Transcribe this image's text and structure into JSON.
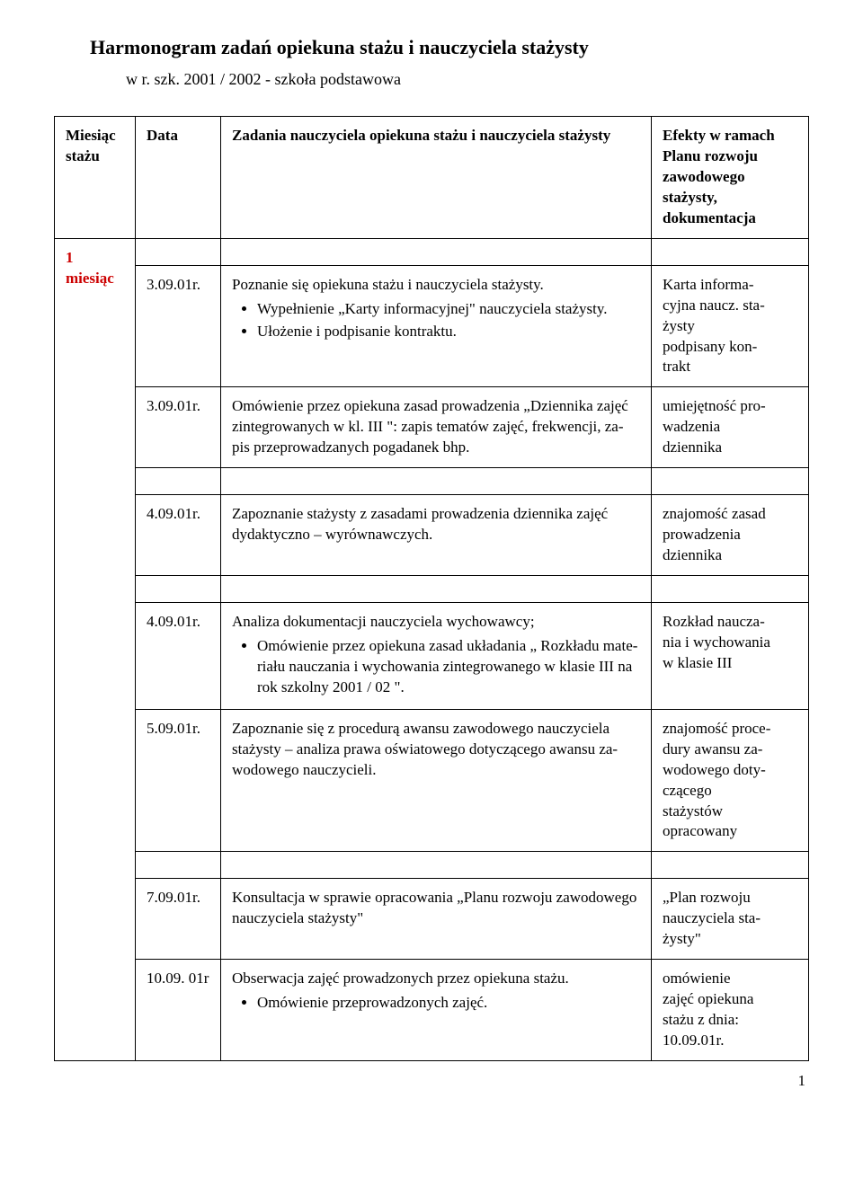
{
  "title": "Harmonogram zadań opiekuna stażu  i nauczyciela stażysty",
  "subtitle": "w   r. szk.   2001 / 2002    -    szkoła podstawowa",
  "headers": {
    "col1": "Miesiąc stażu",
    "col2": "Data",
    "col3": "Zadania nauczyciela opiekuna stażu i nauczyciela stażysty",
    "col4": "Efekty w ramach Planu rozwoju zawodowego stażysty, dokumentacja"
  },
  "month": "1 miesiąc",
  "rows": [
    {
      "date": "3.09.01r.",
      "task_intro": "Poznanie się opiekuna stażu i nauczyciela stażysty.",
      "task_bullets": [
        "Wypełnienie „Karty informacyjnej\" nauczyciela stażysty.",
        "Ułożenie i podpisanie kontraktu."
      ],
      "effect": "Karta informa-\ncyjna naucz. sta-\nżysty\npodpisany kon-\ntrakt"
    },
    {
      "date": "3.09.01r.",
      "task_intro": "Omówienie przez opiekuna zasad prowadzenia „Dziennika zajęć zintegrowanych w kl. III \": zapis tematów zajęć,  frekwencji, za-\npis przeprowadzanych pogadanek bhp.",
      "task_bullets": [],
      "effect": "umiejętność pro-\nwadzenia\ndziennika"
    },
    {
      "date": "4.09.01r.",
      "task_intro": "Zapoznanie stażysty z zasadami prowadzenia dziennika zajęć dydaktyczno – wyrównawczych.",
      "task_bullets": [],
      "effect": "znajomość zasad\nprowadzenia\ndziennika"
    },
    {
      "date": "4.09.01r.",
      "task_intro": "Analiza dokumentacji nauczyciela wychowawcy;",
      "task_bullets": [
        "Omówienie przez opiekuna zasad układania „ Rozkładu mate-\nriału nauczania i wychowania zintegrowanego w klasie III na rok szkolny 2001 / 02 \"."
      ],
      "effect": "Rozkład naucza-\nnia i wychowania\nw klasie III"
    },
    {
      "date": "5.09.01r.",
      "task_intro": "Zapoznanie się z procedurą awansu zawodowego nauczyciela stażysty – analiza prawa oświatowego dotyczącego  awansu za-\nwodowego nauczycieli.",
      "task_bullets": [],
      "effect": "znajomość proce-\ndury awansu za-\nwodowego doty-\nczącego\nstażystów\nopracowany"
    },
    {
      "date": "7.09.01r.",
      "task_intro": "Konsultacja w sprawie opracowania „Planu rozwoju zawodowego nauczyciela stażysty\"",
      "task_bullets": [],
      "effect": "„Plan rozwoju\nnauczyciela sta-\nżysty\""
    },
    {
      "date": "10.09. 01r",
      "task_intro": "Obserwacja zajęć prowadzonych przez opiekuna stażu.",
      "task_bullets": [
        "Omówienie przeprowadzonych zajęć."
      ],
      "effect": "omówienie\nzajęć opiekuna\nstażu z dnia:\n10.09.01r."
    }
  ],
  "groups": [
    {
      "start": 0,
      "count": 2
    },
    {
      "start": 2,
      "count": 1
    },
    {
      "start": 3,
      "count": 2
    },
    {
      "start": 5,
      "count": 2
    }
  ],
  "page_number": "1",
  "colors": {
    "month": "#cc0000"
  }
}
